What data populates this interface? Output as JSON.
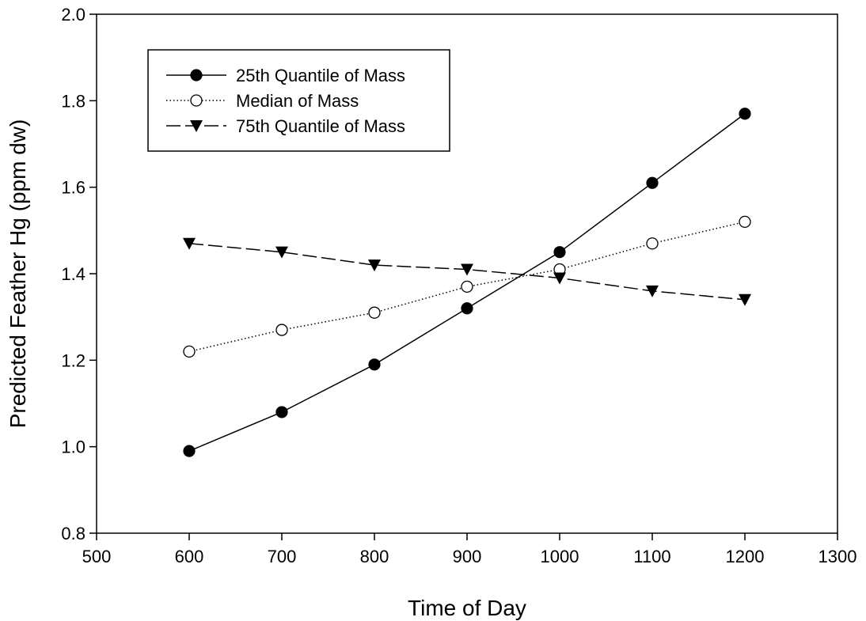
{
  "chart_data": {
    "type": "line",
    "title": "",
    "xlabel": "Time of Day",
    "ylabel": "Predicted Feather Hg (ppm dw)",
    "xlim": [
      500,
      1300
    ],
    "ylim": [
      0.8,
      2.0
    ],
    "xticks": [
      500,
      600,
      700,
      800,
      900,
      1000,
      1100,
      1200,
      1300
    ],
    "yticks": [
      0.8,
      1.0,
      1.2,
      1.4,
      1.6,
      1.8,
      2.0
    ],
    "x_tick_labels": [
      "500",
      "600",
      "700",
      "800",
      "900",
      "1000",
      "1100",
      "1200",
      "1300"
    ],
    "y_tick_labels": [
      "0.8",
      "1.0",
      "1.2",
      "1.4",
      "1.6",
      "1.8",
      "2.0"
    ],
    "grid": false,
    "legend_position": "top-left",
    "x": [
      600,
      700,
      800,
      900,
      1000,
      1100,
      1200
    ],
    "series": [
      {
        "name": "25th Quantile of Mass",
        "marker": "filled-circle",
        "line_style": "solid",
        "values": [
          0.99,
          1.08,
          1.19,
          1.32,
          1.45,
          1.61,
          1.77
        ]
      },
      {
        "name": "Median of Mass",
        "marker": "open-circle",
        "line_style": "dotted",
        "values": [
          1.22,
          1.27,
          1.31,
          1.37,
          1.41,
          1.47,
          1.52
        ]
      },
      {
        "name": "75th Quantile of Mass",
        "marker": "filled-triangle-down",
        "line_style": "dashed",
        "values": [
          1.47,
          1.45,
          1.42,
          1.41,
          1.39,
          1.36,
          1.34
        ]
      }
    ]
  }
}
